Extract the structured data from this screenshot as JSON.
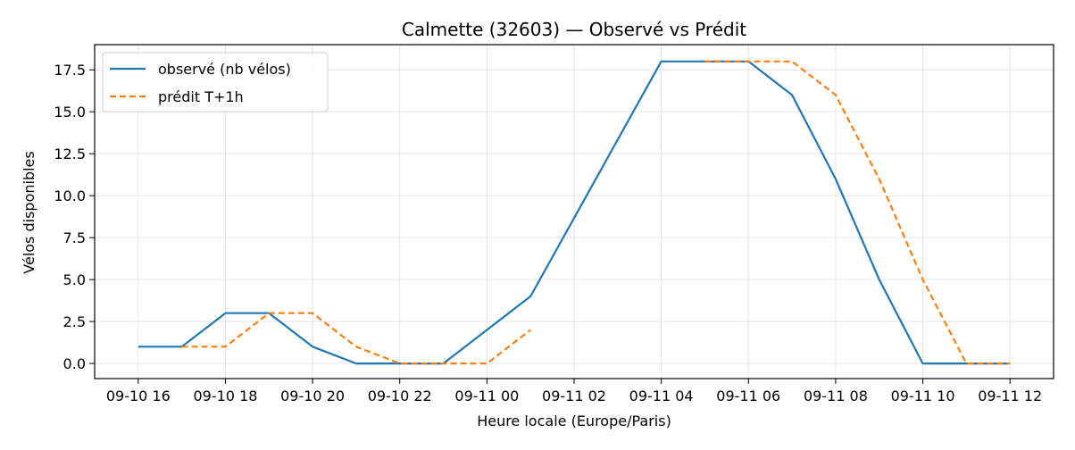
{
  "chart_data": {
    "type": "line",
    "title": "Calmette (32603) — Observé vs Prédit",
    "xlabel": "Heure locale (Europe/Paris)",
    "ylabel": "Vélos disponibles",
    "ylim": [
      -0.9,
      19.0
    ],
    "xlim": [
      "09-10 15:00",
      "09-11 13:00"
    ],
    "grid": true,
    "legend_position": "top-left",
    "x_ticks": [
      "09-10 16",
      "09-10 18",
      "09-10 20",
      "09-10 22",
      "09-11 00",
      "09-11 02",
      "09-11 04",
      "09-11 06",
      "09-11 08",
      "09-11 10",
      "09-11 12"
    ],
    "y_ticks": [
      "0.0",
      "2.5",
      "5.0",
      "7.5",
      "10.0",
      "12.5",
      "15.0",
      "17.5"
    ],
    "series": [
      {
        "name": "observé (nb vélos)",
        "color": "#1f77b4",
        "style": "solid",
        "points": [
          {
            "x": "09-10 16:00",
            "y": 1
          },
          {
            "x": "09-10 17:00",
            "y": 1
          },
          {
            "x": "09-10 18:00",
            "y": 3
          },
          {
            "x": "09-10 19:00",
            "y": 3
          },
          {
            "x": "09-10 20:00",
            "y": 1
          },
          {
            "x": "09-10 21:00",
            "y": 0
          },
          {
            "x": "09-10 22:00",
            "y": 0
          },
          {
            "x": "09-10 23:00",
            "y": 0
          },
          {
            "x": "09-11 00:00",
            "y": 2
          },
          {
            "x": "09-11 01:00",
            "y": 4
          },
          {
            "x": "09-11 04:00",
            "y": 18
          },
          {
            "x": "09-11 05:00",
            "y": 18
          },
          {
            "x": "09-11 06:00",
            "y": 18
          },
          {
            "x": "09-11 07:00",
            "y": 16
          },
          {
            "x": "09-11 08:00",
            "y": 11
          },
          {
            "x": "09-11 09:00",
            "y": 5
          },
          {
            "x": "09-11 10:00",
            "y": 0
          },
          {
            "x": "09-11 11:00",
            "y": 0
          },
          {
            "x": "09-11 12:00",
            "y": 0
          }
        ]
      },
      {
        "name": "prédit T+1h",
        "color": "#ff7f0e",
        "style": "dashed",
        "segments": [
          [
            {
              "x": "09-10 17:00",
              "y": 1
            },
            {
              "x": "09-10 18:00",
              "y": 1
            },
            {
              "x": "09-10 19:00",
              "y": 3
            },
            {
              "x": "09-10 20:00",
              "y": 3
            },
            {
              "x": "09-10 21:00",
              "y": 1
            },
            {
              "x": "09-10 22:00",
              "y": 0
            },
            {
              "x": "09-10 23:00",
              "y": 0
            },
            {
              "x": "09-11 00:00",
              "y": 0
            },
            {
              "x": "09-11 01:00",
              "y": 2
            }
          ],
          [
            {
              "x": "09-11 05:00",
              "y": 18
            },
            {
              "x": "09-11 06:00",
              "y": 18
            },
            {
              "x": "09-11 07:00",
              "y": 18
            },
            {
              "x": "09-11 08:00",
              "y": 16
            },
            {
              "x": "09-11 09:00",
              "y": 11
            },
            {
              "x": "09-11 10:00",
              "y": 5
            },
            {
              "x": "09-11 11:00",
              "y": 0
            },
            {
              "x": "09-11 12:00",
              "y": 0
            }
          ]
        ]
      }
    ]
  }
}
